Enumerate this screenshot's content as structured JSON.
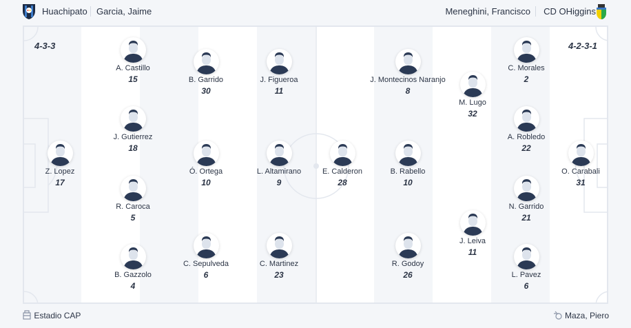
{
  "header": {
    "home_team": "Huachipato",
    "home_coach": "Garcia, Jaime",
    "away_coach": "Meneghini, Francisco",
    "away_team": "CD OHiggins"
  },
  "formations": {
    "home": "4-3-3",
    "away": "4-2-3-1"
  },
  "colors": {
    "kit": "#2b3a55",
    "pitch_line": "#e3e7ee",
    "stripe_dark": "#f4f6f9",
    "stripe_light": "#ffffff"
  },
  "home_players": [
    {
      "name": "Z. Lopez",
      "number": "17"
    },
    {
      "name": "A. Castillo",
      "number": "15"
    },
    {
      "name": "J. Gutierrez",
      "number": "18"
    },
    {
      "name": "R. Caroca",
      "number": "5"
    },
    {
      "name": "B. Gazzolo",
      "number": "4"
    },
    {
      "name": "B. Garrido",
      "number": "30"
    },
    {
      "name": "Ó. Ortega",
      "number": "10"
    },
    {
      "name": "C. Sepulveda",
      "number": "6"
    },
    {
      "name": "J. Figueroa",
      "number": "11"
    },
    {
      "name": "L. Altamirano",
      "number": "9"
    },
    {
      "name": "C. Martinez",
      "number": "23"
    }
  ],
  "away_players": [
    {
      "name": "E. Calderon",
      "number": "28"
    },
    {
      "name": "J. Montecinos Naranjo",
      "number": "8"
    },
    {
      "name": "B. Rabello",
      "number": "10"
    },
    {
      "name": "R. Godoy",
      "number": "26"
    },
    {
      "name": "M. Lugo",
      "number": "32"
    },
    {
      "name": "J. Leiva",
      "number": "11"
    },
    {
      "name": "C. Morales",
      "number": "2"
    },
    {
      "name": "A. Robledo",
      "number": "22"
    },
    {
      "name": "N. Garrido",
      "number": "21"
    },
    {
      "name": "L. Pavez",
      "number": "6"
    },
    {
      "name": "O. Carabali",
      "number": "31"
    }
  ],
  "footer": {
    "stadium": "Estadio CAP",
    "referee": "Maza, Piero",
    "stadium_icon": "stadium-icon",
    "referee_icon": "whistle-icon"
  }
}
